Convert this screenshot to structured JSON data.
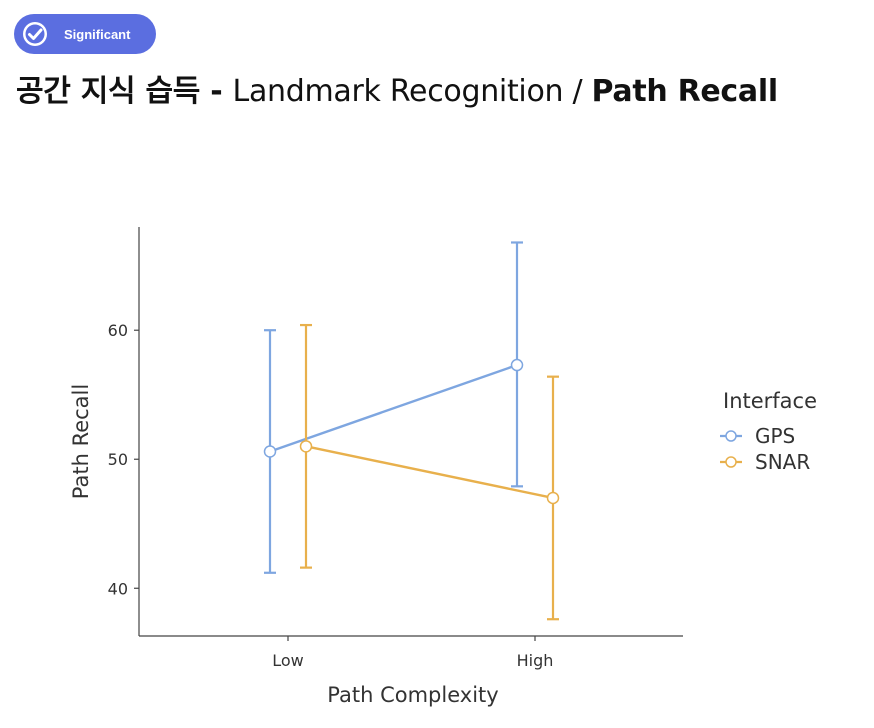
{
  "badge": {
    "label": "Significant",
    "icon": "check-circle-icon",
    "color": "#5b6ee0"
  },
  "title": {
    "korean": "공간 지식 습득",
    "dash": " - ",
    "middle": "Landmark Recognition / ",
    "bold": "Path Recall"
  },
  "chart_data": {
    "type": "line",
    "xlabel": "Path Complexity",
    "ylabel": "Path Recall",
    "categories": [
      "Low",
      "High"
    ],
    "yticks": [
      40,
      50,
      60
    ],
    "ylim": [
      36.3,
      68.0
    ],
    "legend": {
      "title": "Interface",
      "placement": "right"
    },
    "grid": false,
    "series": [
      {
        "name": "GPS",
        "color": "#7ea6e0",
        "values": [
          50.6,
          57.3
        ],
        "err_low": [
          41.2,
          47.9
        ],
        "err_high": [
          60.0,
          66.8
        ]
      },
      {
        "name": "SNAR",
        "color": "#e8b04c",
        "values": [
          51.0,
          47.0
        ],
        "err_low": [
          41.6,
          37.6
        ],
        "err_high": [
          60.4,
          56.4
        ]
      }
    ]
  }
}
